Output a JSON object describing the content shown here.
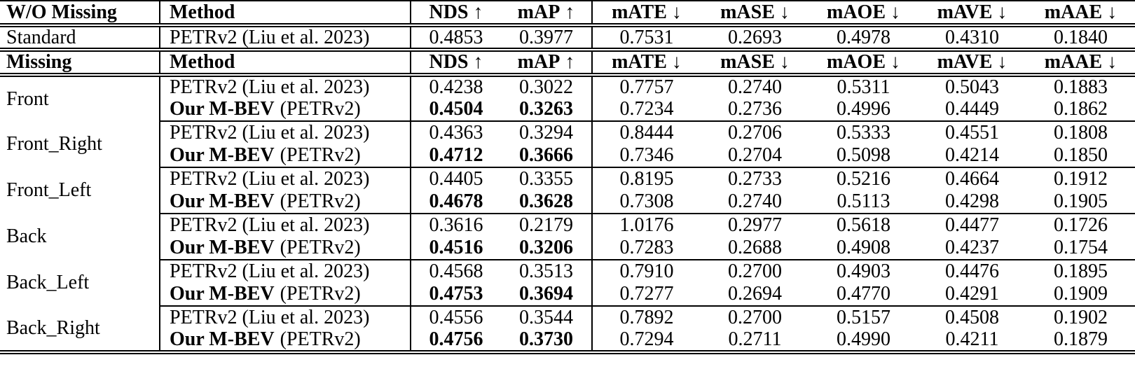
{
  "table": {
    "header_top": {
      "scenario": "W/O Missing",
      "method": "Method"
    },
    "header_missing": {
      "scenario": "Missing",
      "method": "Method"
    },
    "metrics": [
      {
        "name": "NDS",
        "arrow": "↑"
      },
      {
        "name": "mAP",
        "arrow": "↑"
      },
      {
        "name": "mATE",
        "arrow": "↓"
      },
      {
        "name": "mASE",
        "arrow": "↓"
      },
      {
        "name": "mAOE",
        "arrow": "↓"
      },
      {
        "name": "mAVE",
        "arrow": "↓"
      },
      {
        "name": "mAAE",
        "arrow": "↓"
      }
    ],
    "standard": {
      "scenario": "Standard",
      "method": "PETRv2 (Liu et al. 2023)",
      "values": [
        "0.4853",
        "0.3977",
        "0.7531",
        "0.2693",
        "0.4978",
        "0.4310",
        "0.1840"
      ]
    },
    "baseline_method": "PETRv2 (Liu et al. 2023)",
    "ours_method_bold": "Our M-BEV",
    "ours_method_rest": "(PETRv2)",
    "groups": [
      {
        "scenario": "Front",
        "baseline": {
          "method": "PETRv2 (Liu et al. 2023)",
          "values": [
            "0.4238",
            "0.3022",
            "0.7757",
            "0.2740",
            "0.5311",
            "0.5043",
            "0.1883"
          ]
        },
        "ours": {
          "method_bold": "Our M-BEV",
          "method_rest": "(PETRv2)",
          "values": [
            "0.4504",
            "0.3263",
            "0.7234",
            "0.2736",
            "0.4996",
            "0.4449",
            "0.1862"
          ]
        }
      },
      {
        "scenario": "Front_Right",
        "baseline": {
          "method": "PETRv2 (Liu et al. 2023)",
          "values": [
            "0.4363",
            "0.3294",
            "0.8444",
            "0.2706",
            "0.5333",
            "0.4551",
            "0.1808"
          ]
        },
        "ours": {
          "method_bold": "Our M-BEV",
          "method_rest": "(PETRv2)",
          "values": [
            "0.4712",
            "0.3666",
            "0.7346",
            "0.2704",
            "0.5098",
            "0.4214",
            "0.1850"
          ]
        }
      },
      {
        "scenario": "Front_Left",
        "baseline": {
          "method": "PETRv2 (Liu et al. 2023)",
          "values": [
            "0.4405",
            "0.3355",
            "0.8195",
            "0.2733",
            "0.5216",
            "0.4664",
            "0.1912"
          ]
        },
        "ours": {
          "method_bold": "Our M-BEV",
          "method_rest": "(PETRv2)",
          "values": [
            "0.4678",
            "0.3628",
            "0.7308",
            "0.2740",
            "0.5113",
            "0.4298",
            "0.1905"
          ]
        }
      },
      {
        "scenario": "Back",
        "baseline": {
          "method": "PETRv2 (Liu et al. 2023)",
          "values": [
            "0.3616",
            "0.2179",
            "1.0176",
            "0.2977",
            "0.5618",
            "0.4477",
            "0.1726"
          ]
        },
        "ours": {
          "method_bold": "Our M-BEV",
          "method_rest": "(PETRv2)",
          "values": [
            "0.4516",
            "0.3206",
            "0.7283",
            "0.2688",
            "0.4908",
            "0.4237",
            "0.1754"
          ]
        }
      },
      {
        "scenario": "Back_Left",
        "baseline": {
          "method": "PETRv2 (Liu et al. 2023)",
          "values": [
            "0.4568",
            "0.3513",
            "0.7910",
            "0.2700",
            "0.4903",
            "0.4476",
            "0.1895"
          ]
        },
        "ours": {
          "method_bold": "Our M-BEV",
          "method_rest": "(PETRv2)",
          "values": [
            "0.4753",
            "0.3694",
            "0.7277",
            "0.2694",
            "0.4770",
            "0.4291",
            "0.1909"
          ]
        }
      },
      {
        "scenario": "Back_Right",
        "baseline": {
          "method": "PETRv2 (Liu et al. 2023)",
          "values": [
            "0.4556",
            "0.3544",
            "0.7892",
            "0.2700",
            "0.5157",
            "0.4508",
            "0.1902"
          ]
        },
        "ours": {
          "method_bold": "Our M-BEV",
          "method_rest": "(PETRv2)",
          "values": [
            "0.4756",
            "0.3730",
            "0.7294",
            "0.2711",
            "0.4990",
            "0.4211",
            "0.1879"
          ]
        }
      }
    ]
  }
}
